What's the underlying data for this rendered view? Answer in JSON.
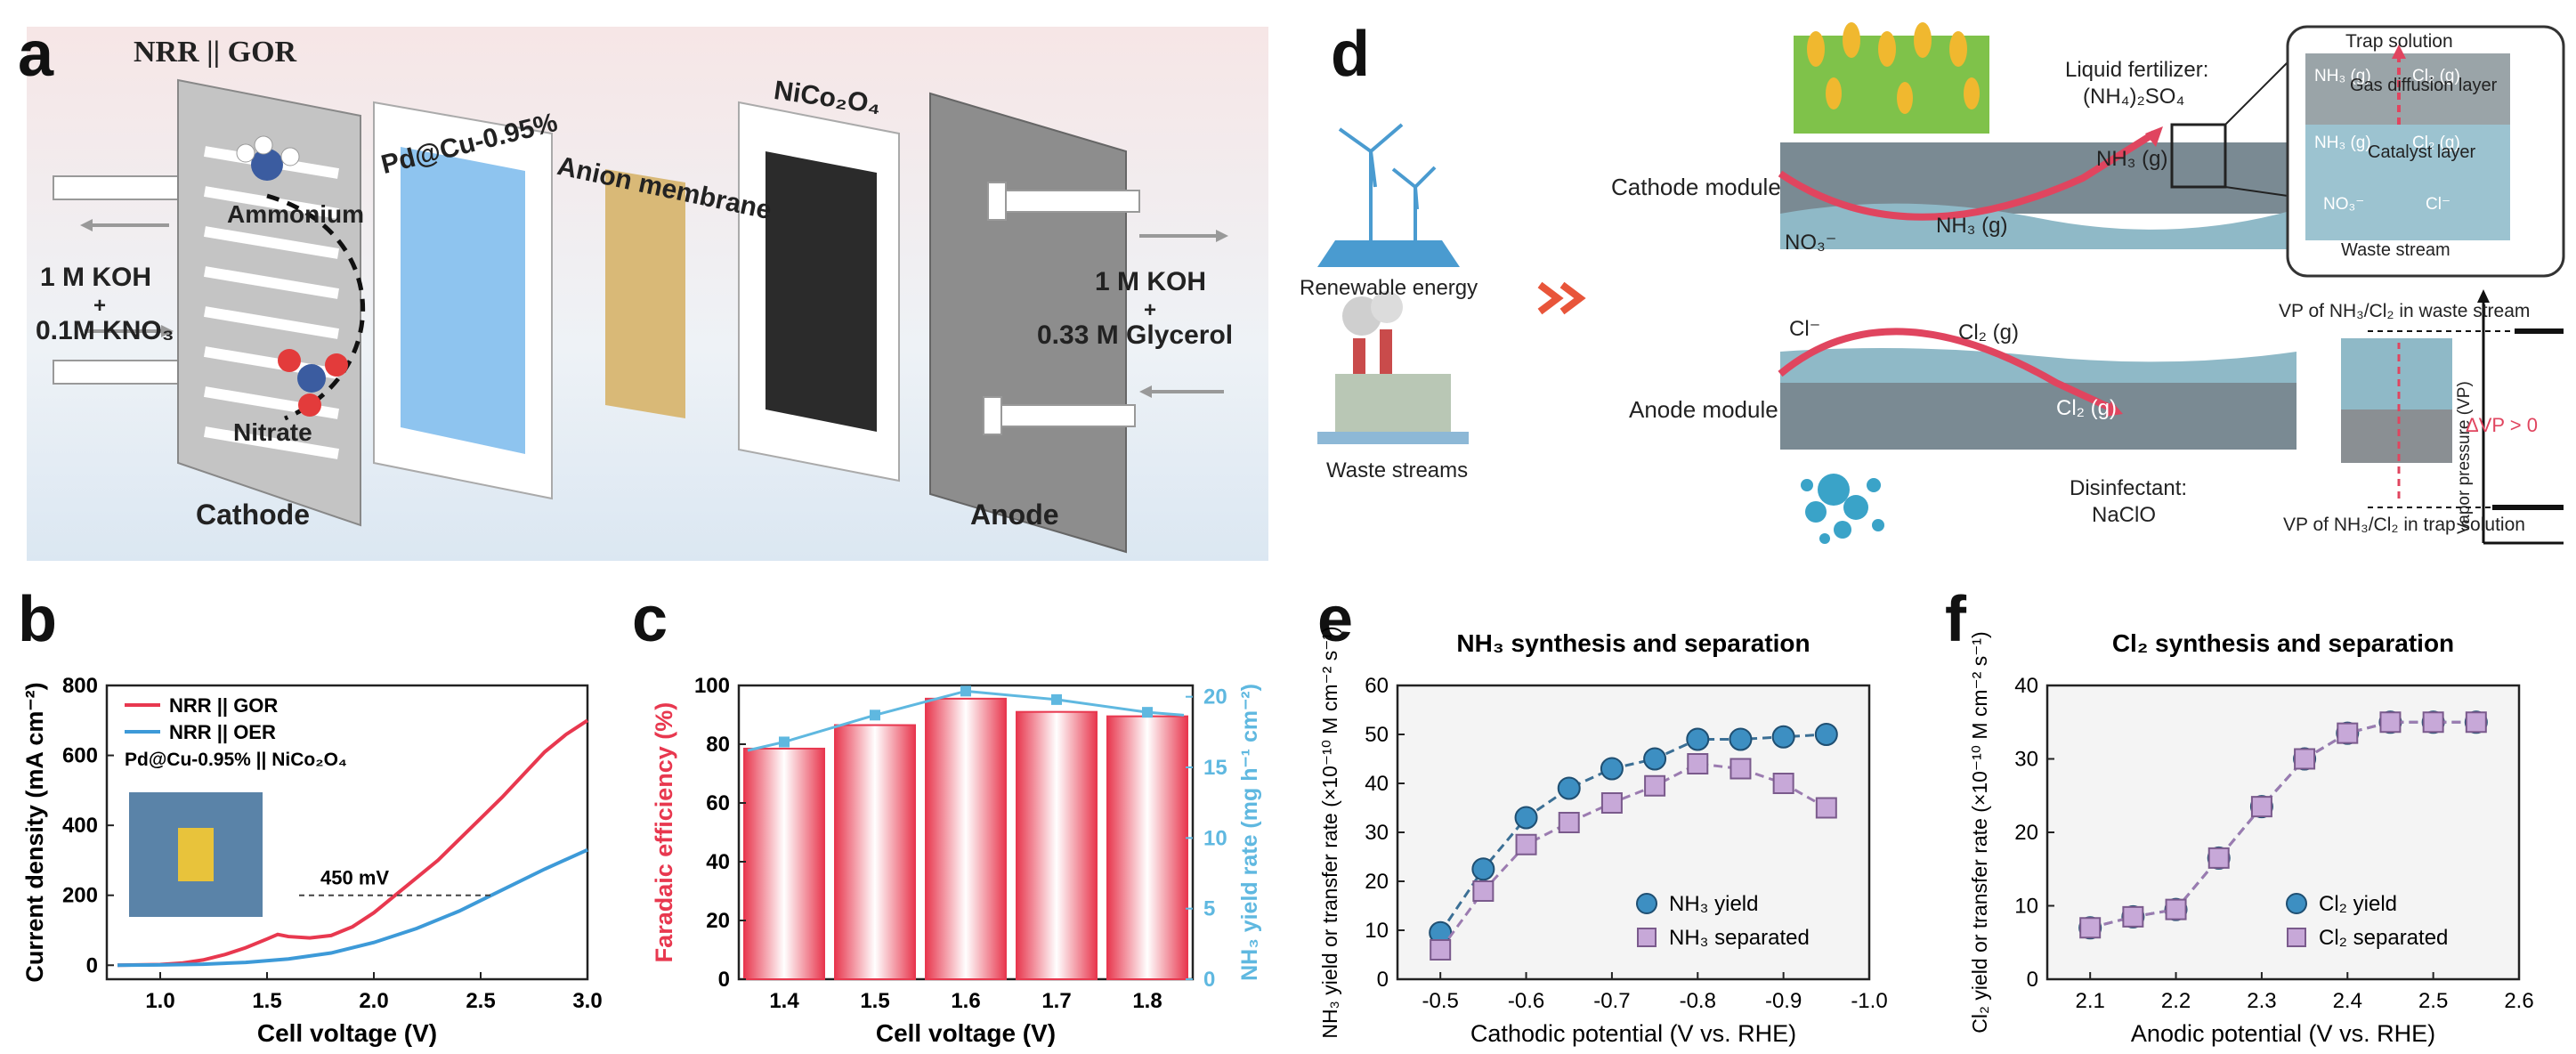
{
  "panel_labels": {
    "a": "a",
    "b": "b",
    "c": "c",
    "d": "d",
    "e": "e",
    "f": "f"
  },
  "panel_a": {
    "title": "NRR || GOR",
    "ammonium": "Ammonium",
    "nitrate": "Nitrate",
    "cathode_electrolyte_1": "1 M KOH",
    "cathode_electrolyte_plus": "+",
    "cathode_electrolyte_2": "0.1M KNO₃",
    "anode_electrolyte_1": "1 M KOH",
    "anode_electrolyte_plus": "+",
    "anode_electrolyte_2": "0.33 M Glycerol",
    "catalyst_cathode": "Pd@Cu-0.95%",
    "membrane": "Anion membrane",
    "catalyst_anode": "NiCo₂O₄",
    "cathode": "Cathode",
    "anode": "Anode",
    "colors": {
      "background": "#f3e9ea",
      "cathode_film": "#8ec4ef",
      "membrane": "#d9b977",
      "anode_film": "#2b2b2b",
      "plate": "#bfbfbf",
      "anode_plate": "#8d8d8d"
    }
  },
  "panel_d": {
    "renewable_energy": "Renewable energy",
    "waste_streams": "Waste streams",
    "cathode_module": "Cathode module",
    "anode_module": "Anode module",
    "liquid_fertilizer_1": "Liquid fertilizer:",
    "liquid_fertilizer_2": "(NH₄)₂SO₄",
    "nh3_gas": "NH₃ (g)",
    "no3": "NO₃⁻",
    "cl_minus": "Cl⁻",
    "cl2_gas": "Cl₂ (g)",
    "disinfectant_1": "Disinfectant:",
    "disinfectant_2": "NaClO",
    "inset_trap": "Trap solution",
    "inset_gdl": "Gas diffusion layer",
    "inset_catalyst": "Catalyst layer",
    "inset_waste": "Waste stream",
    "inset_nh3g": "NH₃ (g)",
    "inset_cl2g": "Cl₂ (g)",
    "inset_no3": "NO₃⁻",
    "inset_cl": "Cl⁻",
    "vp_ylabel": "Vapor pressure (VP)",
    "vp_waste": "VP of NH₃/Cl₂ in waste stream",
    "vp_trap": "VP of NH₃/Cl₂ in trap solution",
    "delta_vp": "ΔVP > 0",
    "colors": {
      "arrow": "#e0455f",
      "module": "#7a9aa8",
      "catalyst": "#8fb9c7",
      "delta": "#e0455f"
    }
  },
  "chart_data": [
    {
      "panel": "b",
      "type": "line",
      "xlabel": "Cell voltage (V)",
      "ylabel": "Current density (mA cm⁻²)",
      "xlim": [
        0.75,
        3.0
      ],
      "ylim": [
        -40,
        800
      ],
      "xticks": [
        "1.0",
        "1.5",
        "2.0",
        "2.5",
        "3.0"
      ],
      "yticks": [
        "0",
        "200",
        "400",
        "600",
        "800"
      ],
      "legend": [
        "NRR || GOR",
        "NRR || OER"
      ],
      "legend_title_note": "Pd@Cu-0.95% || NiCo₂O₄",
      "annotation": "450 mV",
      "series": [
        {
          "name": "NRR || GOR",
          "color": "#e8384f",
          "x": [
            0.8,
            1.0,
            1.1,
            1.2,
            1.3,
            1.4,
            1.5,
            1.55,
            1.6,
            1.7,
            1.8,
            1.9,
            2.0,
            2.1,
            2.2,
            2.3,
            2.4,
            2.5,
            2.6,
            2.7,
            2.8,
            2.9,
            3.0
          ],
          "y": [
            0,
            2,
            6,
            15,
            30,
            50,
            75,
            88,
            82,
            78,
            85,
            110,
            150,
            200,
            250,
            300,
            360,
            420,
            480,
            545,
            610,
            660,
            700
          ]
        },
        {
          "name": "NRR || OER",
          "color": "#3d9ad8",
          "x": [
            0.8,
            1.0,
            1.2,
            1.4,
            1.6,
            1.8,
            2.0,
            2.2,
            2.4,
            2.6,
            2.8,
            3.0
          ],
          "y": [
            0,
            1,
            3,
            8,
            18,
            35,
            65,
            105,
            155,
            215,
            275,
            330
          ]
        }
      ]
    },
    {
      "panel": "c",
      "type": "bar",
      "xlabel": "Cell voltage (V)",
      "ylabel": "Faradaic efficiency (%)",
      "ylabel_right": "NH₃ yield rate (mg h⁻¹ cm⁻²)",
      "categories": [
        "1.4",
        "1.5",
        "1.6",
        "1.7",
        "1.8"
      ],
      "values": [
        78.5,
        86.5,
        95.5,
        91,
        89.5
      ],
      "ylim": [
        0,
        100
      ],
      "yticks": [
        "0",
        "20",
        "40",
        "60",
        "80",
        "100"
      ],
      "y2lim": [
        0,
        20.8
      ],
      "y2ticks": [
        "0",
        "5",
        "10",
        "15",
        "20"
      ],
      "yield_rate": [
        16.8,
        18.7,
        20.4,
        19.8,
        18.9
      ],
      "colors": {
        "bar": "#e8384f",
        "line": "#5fb8e0"
      }
    },
    {
      "panel": "e",
      "type": "scatter",
      "title": "NH₃ synthesis and separation",
      "xlabel": "Cathodic potential (V vs. RHE)",
      "ylabel": "NH₃ yield or transfer rate (×10⁻¹⁰ M cm⁻² s⁻¹)",
      "xlim": [
        -0.45,
        -1.0
      ],
      "ylim": [
        0,
        60
      ],
      "xticks": [
        "-0.5",
        "-0.6",
        "-0.7",
        "-0.8",
        "-0.9",
        "-1.0"
      ],
      "yticks": [
        "0",
        "10",
        "20",
        "30",
        "40",
        "50",
        "60"
      ],
      "x": [
        -0.5,
        -0.55,
        -0.6,
        -0.65,
        -0.7,
        -0.75,
        -0.8,
        -0.85,
        -0.9,
        -0.95
      ],
      "series": [
        {
          "name": "NH₃ yield",
          "color": "#3d8fc2",
          "values": [
            9.5,
            22.5,
            33,
            39,
            43,
            45,
            49,
            49,
            49.5,
            50
          ]
        },
        {
          "name": "NH₃ separated",
          "color": "#c7a8d8",
          "values": [
            6,
            18,
            27.5,
            32,
            36,
            39.5,
            44,
            43,
            40,
            35
          ]
        }
      ]
    },
    {
      "panel": "f",
      "type": "scatter",
      "title": "Cl₂ synthesis and separation",
      "xlabel": "Anodic potential (V vs. RHE)",
      "ylabel": "Cl₂ yield or transfer rate (×10⁻¹⁰ M cm⁻² s⁻¹)",
      "xlim": [
        2.05,
        2.6
      ],
      "ylim": [
        0,
        40
      ],
      "xticks": [
        "2.1",
        "2.2",
        "2.3",
        "2.4",
        "2.5",
        "2.6"
      ],
      "yticks": [
        "0",
        "10",
        "20",
        "30",
        "40"
      ],
      "x": [
        2.1,
        2.15,
        2.2,
        2.25,
        2.3,
        2.35,
        2.4,
        2.45,
        2.5,
        2.55
      ],
      "series": [
        {
          "name": "Cl₂ yield",
          "color": "#3d8fc2",
          "values": [
            7,
            8.5,
            9.5,
            16.5,
            23.5,
            30,
            33.5,
            35,
            35,
            35
          ]
        },
        {
          "name": "Cl₂ separated",
          "color": "#c7a8d8",
          "values": [
            7,
            8.5,
            9.5,
            16.5,
            23.5,
            30,
            33.5,
            35,
            35,
            35
          ]
        }
      ]
    }
  ]
}
